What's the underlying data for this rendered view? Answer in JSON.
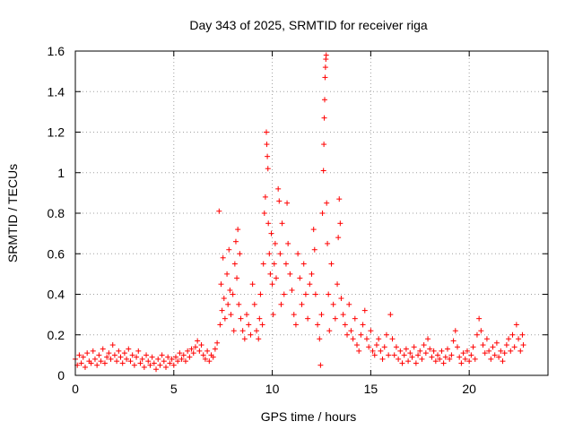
{
  "chart_data": {
    "type": "scatter",
    "title": "Day 343 of 2025, SRMTID for receiver riga",
    "xlabel": "GPS time / hours",
    "ylabel": "SRMTID / TECUs",
    "xlim": [
      0,
      24
    ],
    "ylim": [
      0,
      1.6
    ],
    "xticks": [
      0,
      5,
      10,
      15,
      20
    ],
    "xtick_labels": [
      "0",
      "5",
      "10",
      "15",
      "20"
    ],
    "yticks": [
      0,
      0.2,
      0.4,
      0.6,
      0.8,
      1.0,
      1.2,
      1.4,
      1.6
    ],
    "ytick_labels": [
      "0",
      "0.2",
      "0.4",
      "0.6",
      "0.8",
      "1",
      "1.2",
      "1.4",
      "1.6"
    ],
    "grid": true,
    "marker": "+",
    "color": "#ff0000",
    "series": [
      {
        "name": "SRMTID",
        "points": [
          [
            0.0,
            0.08
          ],
          [
            0.1,
            0.05
          ],
          [
            0.2,
            0.1
          ],
          [
            0.3,
            0.06
          ],
          [
            0.4,
            0.09
          ],
          [
            0.5,
            0.04
          ],
          [
            0.6,
            0.11
          ],
          [
            0.7,
            0.07
          ],
          [
            0.8,
            0.06
          ],
          [
            0.9,
            0.12
          ],
          [
            1.0,
            0.08
          ],
          [
            1.1,
            0.05
          ],
          [
            1.2,
            0.1
          ],
          [
            1.3,
            0.07
          ],
          [
            1.4,
            0.13
          ],
          [
            1.5,
            0.06
          ],
          [
            1.6,
            0.09
          ],
          [
            1.7,
            0.11
          ],
          [
            1.8,
            0.08
          ],
          [
            1.9,
            0.15
          ],
          [
            2.0,
            0.1
          ],
          [
            2.1,
            0.07
          ],
          [
            2.2,
            0.12
          ],
          [
            2.3,
            0.09
          ],
          [
            2.4,
            0.06
          ],
          [
            2.5,
            0.11
          ],
          [
            2.6,
            0.08
          ],
          [
            2.7,
            0.13
          ],
          [
            2.8,
            0.07
          ],
          [
            2.9,
            0.1
          ],
          [
            3.0,
            0.05
          ],
          [
            3.1,
            0.09
          ],
          [
            3.2,
            0.12
          ],
          [
            3.3,
            0.06
          ],
          [
            3.4,
            0.08
          ],
          [
            3.5,
            0.04
          ],
          [
            3.6,
            0.1
          ],
          [
            3.7,
            0.07
          ],
          [
            3.8,
            0.05
          ],
          [
            3.9,
            0.09
          ],
          [
            4.0,
            0.06
          ],
          [
            4.1,
            0.03
          ],
          [
            4.2,
            0.08
          ],
          [
            4.3,
            0.05
          ],
          [
            4.4,
            0.1
          ],
          [
            4.5,
            0.07
          ],
          [
            4.6,
            0.04
          ],
          [
            4.7,
            0.09
          ],
          [
            4.8,
            0.06
          ],
          [
            4.9,
            0.08
          ],
          [
            5.0,
            0.05
          ],
          [
            5.1,
            0.09
          ],
          [
            5.2,
            0.07
          ],
          [
            5.3,
            0.11
          ],
          [
            5.4,
            0.08
          ],
          [
            5.5,
            0.1
          ],
          [
            5.6,
            0.07
          ],
          [
            5.7,
            0.12
          ],
          [
            5.8,
            0.09
          ],
          [
            5.9,
            0.13
          ],
          [
            6.0,
            0.11
          ],
          [
            6.1,
            0.14
          ],
          [
            6.2,
            0.17
          ],
          [
            6.3,
            0.12
          ],
          [
            6.4,
            0.15
          ],
          [
            6.5,
            0.1
          ],
          [
            6.6,
            0.08
          ],
          [
            6.7,
            0.12
          ],
          [
            6.8,
            0.07
          ],
          [
            6.9,
            0.1
          ],
          [
            7.0,
            0.09
          ],
          [
            7.1,
            0.13
          ],
          [
            7.2,
            0.16
          ],
          [
            7.3,
            0.81
          ],
          [
            7.35,
            0.25
          ],
          [
            7.4,
            0.45
          ],
          [
            7.45,
            0.32
          ],
          [
            7.5,
            0.58
          ],
          [
            7.55,
            0.38
          ],
          [
            7.6,
            0.28
          ],
          [
            7.7,
            0.5
          ],
          [
            7.75,
            0.35
          ],
          [
            7.8,
            0.62
          ],
          [
            7.85,
            0.42
          ],
          [
            7.9,
            0.3
          ],
          [
            8.0,
            0.4
          ],
          [
            8.05,
            0.22
          ],
          [
            8.1,
            0.55
          ],
          [
            8.15,
            0.66
          ],
          [
            8.2,
            0.48
          ],
          [
            8.25,
            0.72
          ],
          [
            8.3,
            0.35
          ],
          [
            8.35,
            0.6
          ],
          [
            8.4,
            0.28
          ],
          [
            8.5,
            0.22
          ],
          [
            8.6,
            0.18
          ],
          [
            8.7,
            0.3
          ],
          [
            8.8,
            0.25
          ],
          [
            8.9,
            0.2
          ],
          [
            9.0,
            0.45
          ],
          [
            9.1,
            0.35
          ],
          [
            9.2,
            0.22
          ],
          [
            9.3,
            0.18
          ],
          [
            9.35,
            0.28
          ],
          [
            9.4,
            0.4
          ],
          [
            9.5,
            0.25
          ],
          [
            9.55,
            0.55
          ],
          [
            9.6,
            0.8
          ],
          [
            9.65,
            0.88
          ],
          [
            9.7,
            1.2
          ],
          [
            9.72,
            1.14
          ],
          [
            9.75,
            1.08
          ],
          [
            9.78,
            1.02
          ],
          [
            9.8,
            0.75
          ],
          [
            9.85,
            0.6
          ],
          [
            9.9,
            0.5
          ],
          [
            9.95,
            0.7
          ],
          [
            10.0,
            0.45
          ],
          [
            10.05,
            0.3
          ],
          [
            10.1,
            0.55
          ],
          [
            10.15,
            0.65
          ],
          [
            10.2,
            0.48
          ],
          [
            10.3,
            0.92
          ],
          [
            10.35,
            0.86
          ],
          [
            10.4,
            0.6
          ],
          [
            10.45,
            0.35
          ],
          [
            10.5,
            0.75
          ],
          [
            10.6,
            0.4
          ],
          [
            10.7,
            0.55
          ],
          [
            10.75,
            0.85
          ],
          [
            10.8,
            0.65
          ],
          [
            10.9,
            0.5
          ],
          [
            11.0,
            0.42
          ],
          [
            11.1,
            0.3
          ],
          [
            11.2,
            0.25
          ],
          [
            11.3,
            0.6
          ],
          [
            11.4,
            0.48
          ],
          [
            11.5,
            0.35
          ],
          [
            11.6,
            0.55
          ],
          [
            11.7,
            0.4
          ],
          [
            11.8,
            0.28
          ],
          [
            11.9,
            0.45
          ],
          [
            12.0,
            0.5
          ],
          [
            12.1,
            0.72
          ],
          [
            12.15,
            0.62
          ],
          [
            12.2,
            0.4
          ],
          [
            12.3,
            0.25
          ],
          [
            12.4,
            0.18
          ],
          [
            12.45,
            0.05
          ],
          [
            12.5,
            0.3
          ],
          [
            12.55,
            0.8
          ],
          [
            12.6,
            1.01
          ],
          [
            12.62,
            1.14
          ],
          [
            12.64,
            1.27
          ],
          [
            12.66,
            1.36
          ],
          [
            12.68,
            1.47
          ],
          [
            12.7,
            1.52
          ],
          [
            12.72,
            1.56
          ],
          [
            12.74,
            1.58
          ],
          [
            12.76,
            0.85
          ],
          [
            12.8,
            0.65
          ],
          [
            12.85,
            0.4
          ],
          [
            12.9,
            0.22
          ],
          [
            13.0,
            0.55
          ],
          [
            13.1,
            0.35
          ],
          [
            13.2,
            0.28
          ],
          [
            13.3,
            0.45
          ],
          [
            13.35,
            0.68
          ],
          [
            13.4,
            0.87
          ],
          [
            13.45,
            0.75
          ],
          [
            13.5,
            0.38
          ],
          [
            13.6,
            0.3
          ],
          [
            13.7,
            0.25
          ],
          [
            13.8,
            0.2
          ],
          [
            13.9,
            0.35
          ],
          [
            14.0,
            0.22
          ],
          [
            14.1,
            0.18
          ],
          [
            14.2,
            0.28
          ],
          [
            14.3,
            0.15
          ],
          [
            14.4,
            0.12
          ],
          [
            14.5,
            0.2
          ],
          [
            14.6,
            0.25
          ],
          [
            14.7,
            0.32
          ],
          [
            14.8,
            0.18
          ],
          [
            14.9,
            0.14
          ],
          [
            15.0,
            0.22
          ],
          [
            15.1,
            0.12
          ],
          [
            15.2,
            0.1
          ],
          [
            15.3,
            0.15
          ],
          [
            15.4,
            0.18
          ],
          [
            15.5,
            0.12
          ],
          [
            15.6,
            0.08
          ],
          [
            15.7,
            0.14
          ],
          [
            15.8,
            0.2
          ],
          [
            15.9,
            0.1
          ],
          [
            16.0,
            0.3
          ],
          [
            16.1,
            0.18
          ],
          [
            16.2,
            0.1
          ],
          [
            16.3,
            0.14
          ],
          [
            16.4,
            0.08
          ],
          [
            16.5,
            0.12
          ],
          [
            16.6,
            0.06
          ],
          [
            16.7,
            0.1
          ],
          [
            16.8,
            0.13
          ],
          [
            16.9,
            0.07
          ],
          [
            17.0,
            0.11
          ],
          [
            17.1,
            0.09
          ],
          [
            17.2,
            0.14
          ],
          [
            17.3,
            0.06
          ],
          [
            17.4,
            0.1
          ],
          [
            17.5,
            0.12
          ],
          [
            17.6,
            0.08
          ],
          [
            17.7,
            0.15
          ],
          [
            17.8,
            0.11
          ],
          [
            17.9,
            0.18
          ],
          [
            18.0,
            0.13
          ],
          [
            18.1,
            0.09
          ],
          [
            18.2,
            0.12
          ],
          [
            18.3,
            0.07
          ],
          [
            18.4,
            0.1
          ],
          [
            18.5,
            0.08
          ],
          [
            18.6,
            0.12
          ],
          [
            18.7,
            0.06
          ],
          [
            18.8,
            0.09
          ],
          [
            18.9,
            0.13
          ],
          [
            19.0,
            0.08
          ],
          [
            19.1,
            0.1
          ],
          [
            19.2,
            0.17
          ],
          [
            19.3,
            0.22
          ],
          [
            19.4,
            0.14
          ],
          [
            19.5,
            0.09
          ],
          [
            19.6,
            0.06
          ],
          [
            19.7,
            0.11
          ],
          [
            19.8,
            0.08
          ],
          [
            19.9,
            0.12
          ],
          [
            20.0,
            0.07
          ],
          [
            20.1,
            0.1
          ],
          [
            20.2,
            0.14
          ],
          [
            20.3,
            0.08
          ],
          [
            20.4,
            0.2
          ],
          [
            20.5,
            0.28
          ],
          [
            20.6,
            0.22
          ],
          [
            20.7,
            0.15
          ],
          [
            20.8,
            0.11
          ],
          [
            20.9,
            0.18
          ],
          [
            21.0,
            0.12
          ],
          [
            21.1,
            0.08
          ],
          [
            21.2,
            0.14
          ],
          [
            21.3,
            0.1
          ],
          [
            21.4,
            0.16
          ],
          [
            21.5,
            0.09
          ],
          [
            21.6,
            0.12
          ],
          [
            21.7,
            0.07
          ],
          [
            21.8,
            0.11
          ],
          [
            21.9,
            0.15
          ],
          [
            22.0,
            0.18
          ],
          [
            22.1,
            0.12
          ],
          [
            22.2,
            0.2
          ],
          [
            22.3,
            0.14
          ],
          [
            22.4,
            0.25
          ],
          [
            22.5,
            0.18
          ],
          [
            22.6,
            0.12
          ],
          [
            22.7,
            0.2
          ],
          [
            22.75,
            0.15
          ]
        ]
      }
    ]
  }
}
